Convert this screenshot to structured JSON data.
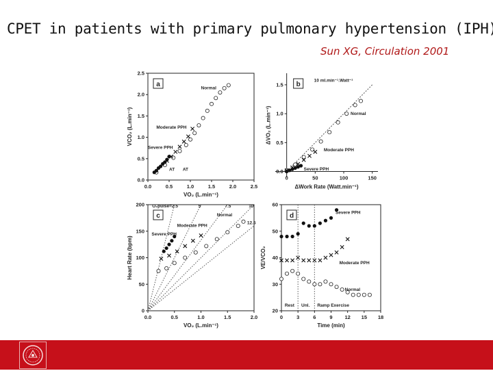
{
  "slide": {
    "title": "CPET in patients with primary pulmonary hypertension (IPH)",
    "citation": "Sun XG, Circulation 2001",
    "footer_color": "#c6101a",
    "logo_icon": "university-seal-icon"
  },
  "chart_data": [
    {
      "panel": "a",
      "type": "scatter",
      "xlabel": "VO₂ (L.min⁻¹)",
      "ylabel": "VCO₂ (L.min⁻¹)",
      "xlim": [
        0,
        2.5
      ],
      "ylim": [
        0,
        2.5
      ],
      "xticks": [
        "0.0",
        "0.5",
        "1.0",
        "1.5",
        "2.0",
        "2.5"
      ],
      "yticks": [
        "0.0",
        "0.5",
        "1.0",
        "1.5",
        "2.0",
        "2.5"
      ],
      "series": [
        {
          "name": "Normal",
          "marker": "open-circle",
          "x": [
            0.2,
            0.4,
            0.6,
            0.75,
            0.9,
            1.0,
            1.1,
            1.2,
            1.3,
            1.4,
            1.5,
            1.6,
            1.7,
            1.8,
            1.9
          ],
          "y": [
            0.18,
            0.35,
            0.52,
            0.68,
            0.82,
            0.95,
            1.1,
            1.28,
            1.45,
            1.62,
            1.78,
            1.92,
            2.05,
            2.15,
            2.22
          ]
        },
        {
          "name": "Moderate PPH",
          "marker": "x",
          "x": [
            0.45,
            0.55,
            0.65,
            0.75,
            0.85,
            0.95,
            1.05
          ],
          "y": [
            0.45,
            0.55,
            0.66,
            0.78,
            0.9,
            1.02,
            1.2
          ]
        },
        {
          "name": "Severe PPH",
          "marker": "filled-circle",
          "x": [
            0.15,
            0.2,
            0.25,
            0.3,
            0.35,
            0.4,
            0.45,
            0.5
          ],
          "y": [
            0.18,
            0.22,
            0.28,
            0.32,
            0.38,
            0.42,
            0.48,
            0.55
          ]
        }
      ],
      "annotations": [
        {
          "text": "Normal",
          "x": 1.25,
          "y": 2.12
        },
        {
          "text": "Moderate PPH",
          "x": 0.2,
          "y": 1.2
        },
        {
          "text": "Severe PPH",
          "x": 0.0,
          "y": 0.73
        },
        {
          "text": "AT",
          "x": 0.5,
          "y": 0.22
        },
        {
          "text": "AT",
          "x": 0.82,
          "y": 0.22
        }
      ]
    },
    {
      "panel": "b",
      "type": "scatter",
      "xlabel": "ΔWork Rate (Watt.min⁻¹)",
      "ylabel": "ΔVO₂ (L.min⁻¹)",
      "xlim": [
        -20,
        160
      ],
      "ylim": [
        -0.1,
        1.7
      ],
      "xticks": [
        "0",
        "50",
        "100",
        "150"
      ],
      "yticks": [
        "0.0",
        "0.5",
        "1.0",
        "1.5"
      ],
      "reference_line": "10 ml.min⁻¹.Watt⁻¹",
      "series": [
        {
          "name": "Normal",
          "marker": "open-circle",
          "x": [
            0,
            15,
            30,
            45,
            60,
            75,
            90,
            105,
            120,
            130
          ],
          "y": [
            0.02,
            0.12,
            0.25,
            0.38,
            0.52,
            0.68,
            0.85,
            1.0,
            1.15,
            1.22
          ]
        },
        {
          "name": "Moderate PPH",
          "marker": "x",
          "x": [
            0,
            10,
            20,
            30,
            40,
            50
          ],
          "y": [
            0.02,
            0.07,
            0.13,
            0.2,
            0.27,
            0.34
          ]
        },
        {
          "name": "Severe PPH",
          "marker": "filled-circle",
          "x": [
            0,
            5,
            10,
            15,
            20,
            25
          ],
          "y": [
            0.0,
            0.02,
            0.04,
            0.06,
            0.08,
            0.1
          ]
        }
      ],
      "annotations": [
        {
          "text": "10 ml.min⁻¹.Watt⁻¹",
          "x": 48,
          "y": 1.55
        },
        {
          "text": "Normal",
          "x": 112,
          "y": 0.98
        },
        {
          "text": "Moderate PPH",
          "x": 65,
          "y": 0.35
        },
        {
          "text": "Severe PPH",
          "x": 30,
          "y": 0.02
        }
      ]
    },
    {
      "panel": "c",
      "type": "scatter",
      "xlabel": "VO₂ (L.min⁻¹)",
      "ylabel": "Heart Rate (bpm)",
      "xlim": [
        0,
        2.0
      ],
      "ylim": [
        0,
        200
      ],
      "xticks": [
        "0.0",
        "0.5",
        "1.0",
        "1.5",
        "2.0"
      ],
      "yticks": [
        "0",
        "50",
        "100",
        "150",
        "200"
      ],
      "iso_lines_label": "O₂pulse=2.5",
      "iso_lines": [
        "2.5",
        "5",
        "7.5",
        "10",
        "12.5"
      ],
      "series": [
        {
          "name": "Normal",
          "marker": "open-circle",
          "x": [
            0.2,
            0.35,
            0.5,
            0.7,
            0.9,
            1.1,
            1.3,
            1.5,
            1.7,
            1.8
          ],
          "y": [
            75,
            80,
            90,
            100,
            110,
            122,
            135,
            148,
            160,
            168
          ]
        },
        {
          "name": "Moderate PPH",
          "marker": "x",
          "x": [
            0.25,
            0.4,
            0.55,
            0.7,
            0.85,
            1.0
          ],
          "y": [
            98,
            104,
            112,
            122,
            132,
            142
          ]
        },
        {
          "name": "Severe PPH",
          "marker": "filled-circle",
          "x": [
            0.3,
            0.35,
            0.4,
            0.45,
            0.5
          ],
          "y": [
            112,
            118,
            125,
            132,
            140
          ]
        }
      ],
      "annotations": [
        {
          "text": "O₂pulse=2.5",
          "x": 0.08,
          "y": 195
        },
        {
          "text": "5",
          "x": 0.95,
          "y": 195
        },
        {
          "text": "7.5",
          "x": 1.45,
          "y": 195
        },
        {
          "text": "10",
          "x": 1.9,
          "y": 195
        },
        {
          "text": "12.5",
          "x": 1.87,
          "y": 163
        },
        {
          "text": "Normal",
          "x": 1.3,
          "y": 178
        },
        {
          "text": "Moderate PPH",
          "x": 0.55,
          "y": 158
        },
        {
          "text": "Severe PPH",
          "x": 0.07,
          "y": 142
        }
      ]
    },
    {
      "panel": "d",
      "type": "scatter",
      "xlabel": "Time (min)",
      "ylabel": "VE/VCO₂",
      "xlim": [
        0,
        18
      ],
      "ylim": [
        20,
        60
      ],
      "xticks": [
        "0",
        "3",
        "6",
        "9",
        "12",
        "15",
        "18"
      ],
      "yticks": [
        "20",
        "30",
        "40",
        "50",
        "60"
      ],
      "phase_lines": [
        3,
        6
      ],
      "phase_labels": [
        "Rest",
        "Unl.",
        "Ramp Exercise"
      ],
      "series": [
        {
          "name": "Severe PPH",
          "marker": "filled-circle",
          "x": [
            0,
            1,
            2,
            3,
            4,
            5,
            6,
            7,
            8,
            9,
            10
          ],
          "y": [
            48,
            48,
            48,
            49,
            53,
            52,
            52,
            53,
            54,
            55,
            58
          ]
        },
        {
          "name": "Moderate PPH",
          "marker": "x",
          "x": [
            0,
            1,
            2,
            3,
            4,
            5,
            6,
            7,
            8,
            9,
            10,
            11,
            12
          ],
          "y": [
            39,
            39,
            39,
            40,
            39,
            39,
            39,
            39,
            40,
            41,
            42,
            44,
            47
          ]
        },
        {
          "name": "Normal",
          "marker": "open-circle",
          "x": [
            0,
            1,
            2,
            3,
            4,
            5,
            6,
            7,
            8,
            9,
            10,
            11,
            12,
            13,
            14,
            15,
            16
          ],
          "y": [
            32,
            34,
            35,
            34,
            32,
            31,
            30,
            30,
            31,
            30,
            29,
            28,
            27,
            26,
            26,
            26,
            26
          ]
        }
      ],
      "annotations": [
        {
          "text": "Severe PPH",
          "x": 9.8,
          "y": 56.5
        },
        {
          "text": "Moderate PPH",
          "x": 10.5,
          "y": 37.5
        },
        {
          "text": "Normal",
          "x": 11.5,
          "y": 27.5
        },
        {
          "text": "Rest",
          "x": 0.6,
          "y": 21.5
        },
        {
          "text": "Unl.",
          "x": 3.6,
          "y": 21.5
        },
        {
          "text": "Ramp Exercise",
          "x": 6.5,
          "y": 21.5
        }
      ]
    }
  ]
}
